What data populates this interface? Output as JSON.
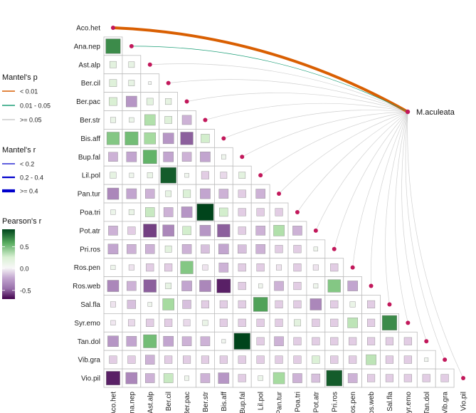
{
  "chart_data": {
    "type": "heatmap",
    "subtype": "mantel-correlation-network",
    "variables": [
      "Aco.het",
      "Ana.nep",
      "Ast.alp",
      "Ber.cil",
      "Ber.pac",
      "Ber.str",
      "Bis.aff",
      "Bup.fal",
      "Lil.pol",
      "Pan.tur",
      "Poa.tri",
      "Pot.atr",
      "Pri.ros",
      "Ros.pen",
      "Ros.web",
      "Sal.fla",
      "Syr.emo",
      "Tan.dol",
      "Vib.gra",
      "Vio.pil"
    ],
    "pearson_matrix_lower": [
      [],
      [
        0.75
      ],
      [
        0.15,
        0.12
      ],
      [
        0.18,
        0.12,
        0.03
      ],
      [
        0.22,
        -0.4,
        0.15,
        0.13
      ],
      [
        0.1,
        0.08,
        0.4,
        0.18,
        -0.3
      ],
      [
        0.55,
        0.6,
        0.45,
        -0.4,
        -0.55,
        0.25
      ],
      [
        -0.3,
        -0.35,
        0.65,
        -0.35,
        -0.3,
        -0.35,
        0.07
      ],
      [
        0.13,
        0.07,
        0.1,
        0.85,
        0.06,
        -0.2,
        -0.15,
        0.15
      ],
      [
        -0.45,
        -0.35,
        -0.3,
        0.12,
        0.2,
        -0.35,
        -0.3,
        -0.2,
        -0.3
      ],
      [
        0.08,
        0.1,
        0.3,
        -0.3,
        -0.4,
        0.95,
        0.25,
        -0.2,
        -0.2,
        -0.2
      ],
      [
        -0.3,
        -0.2,
        -0.6,
        -0.45,
        0.25,
        -0.4,
        -0.55,
        -0.2,
        -0.3,
        0.4,
        -0.3
      ],
      [
        -0.35,
        -0.3,
        -0.3,
        0.15,
        -0.3,
        -0.25,
        -0.35,
        -0.25,
        -0.3,
        -0.2,
        -0.2,
        0.06
      ],
      [
        0.07,
        -0.1,
        -0.2,
        -0.2,
        0.55,
        -0.1,
        -0.3,
        -0.2,
        -0.2,
        -0.1,
        -0.2,
        -0.1,
        -0.2
      ],
      [
        -0.45,
        -0.3,
        -0.55,
        0.12,
        -0.35,
        -0.45,
        -0.65,
        -0.2,
        0.06,
        -0.3,
        -0.2,
        0.07,
        0.55,
        -0.35
      ],
      [
        -0.1,
        -0.25,
        0.06,
        0.45,
        -0.25,
        -0.2,
        -0.2,
        -0.2,
        0.7,
        -0.2,
        -0.2,
        -0.45,
        -0.2,
        0.1,
        -0.2
      ],
      [
        -0.08,
        -0.15,
        -0.2,
        -0.2,
        -0.15,
        0.1,
        -0.2,
        -0.2,
        -0.2,
        -0.2,
        0.15,
        -0.2,
        -0.2,
        0.35,
        -0.2,
        0.75
      ],
      [
        -0.4,
        -0.35,
        0.6,
        -0.35,
        -0.3,
        -0.3,
        0.05,
        0.9,
        -0.2,
        -0.3,
        -0.2,
        -0.2,
        -0.2,
        -0.2,
        -0.2,
        -0.2,
        -0.2
      ],
      [
        -0.2,
        -0.2,
        -0.3,
        -0.2,
        -0.2,
        -0.2,
        -0.2,
        -0.2,
        -0.2,
        -0.2,
        -0.2,
        0.2,
        -0.2,
        -0.2,
        0.35,
        -0.2,
        -0.2,
        0.05
      ],
      [
        -0.65,
        -0.45,
        -0.3,
        0.3,
        0.07,
        -0.3,
        -0.4,
        -0.2,
        0.08,
        0.45,
        -0.3,
        -0.25,
        0.85,
        -0.3,
        -0.2,
        -0.2,
        -0.2,
        -0.2,
        -0.2
      ]
    ],
    "mantel": {
      "target": "M.aculeata",
      "links": [
        {
          "from": "Aco.het",
          "p_class": "< 0.01",
          "r_class": ">= 0.4"
        },
        {
          "from": "Ana.nep",
          "p_class": "0.01 - 0.05",
          "r_class": "< 0.2"
        },
        {
          "from": "Ast.alp",
          "p_class": ">= 0.05",
          "r_class": "< 0.2"
        },
        {
          "from": "Ber.cil",
          "p_class": ">= 0.05",
          "r_class": "< 0.2"
        },
        {
          "from": "Ber.pac",
          "p_class": ">= 0.05",
          "r_class": "< 0.2"
        },
        {
          "from": "Ber.str",
          "p_class": ">= 0.05",
          "r_class": "< 0.2"
        },
        {
          "from": "Bis.aff",
          "p_class": ">= 0.05",
          "r_class": "< 0.2"
        },
        {
          "from": "Bup.fal",
          "p_class": ">= 0.05",
          "r_class": "< 0.2"
        },
        {
          "from": "Lil.pol",
          "p_class": ">= 0.05",
          "r_class": "< 0.2"
        },
        {
          "from": "Pan.tur",
          "p_class": ">= 0.05",
          "r_class": "< 0.2"
        },
        {
          "from": "Poa.tri",
          "p_class": ">= 0.05",
          "r_class": "< 0.2"
        },
        {
          "from": "Pot.atr",
          "p_class": ">= 0.05",
          "r_class": "< 0.2"
        },
        {
          "from": "Pri.ros",
          "p_class": ">= 0.05",
          "r_class": "< 0.2"
        },
        {
          "from": "Ros.pen",
          "p_class": ">= 0.05",
          "r_class": "< 0.2"
        },
        {
          "from": "Ros.web",
          "p_class": ">= 0.05",
          "r_class": "< 0.2"
        },
        {
          "from": "Sal.fla",
          "p_class": ">= 0.05",
          "r_class": "< 0.2"
        },
        {
          "from": "Syr.emo",
          "p_class": ">= 0.05",
          "r_class": "< 0.2"
        },
        {
          "from": "Tan.dol",
          "p_class": ">= 0.05",
          "r_class": "< 0.2"
        },
        {
          "from": "Vib.gra",
          "p_class": ">= 0.05",
          "r_class": "< 0.2"
        },
        {
          "from": "Vio.pil",
          "p_class": ">= 0.05",
          "r_class": "< 0.2"
        }
      ]
    },
    "legend": {
      "mantel_p": {
        "title": "Mantel's p",
        "items": [
          {
            "label": "< 0.01",
            "color": "#d95f02"
          },
          {
            "label": "0.01 - 0.05",
            "color": "#1b9e77"
          },
          {
            "label": ">= 0.05",
            "color": "#cccccc"
          }
        ]
      },
      "mantel_r": {
        "title": "Mantel's r",
        "items": [
          {
            "label": "< 0.2",
            "weight": "thin"
          },
          {
            "label": "0.2 - 0.4",
            "weight": "medium"
          },
          {
            "label": ">= 0.4",
            "weight": "thick"
          }
        ],
        "color": "#0000cc"
      },
      "pearson_r": {
        "title": "Pearson's r",
        "ticks": [
          0.5,
          0.0,
          -0.5
        ],
        "tick_labels": [
          "0.5",
          "0.0",
          "-0.5"
        ],
        "range": [
          -0.7,
          0.9
        ],
        "colors": {
          "high": "#00441b",
          "mid": "#f7f7f7",
          "low": "#40004b"
        }
      }
    }
  }
}
